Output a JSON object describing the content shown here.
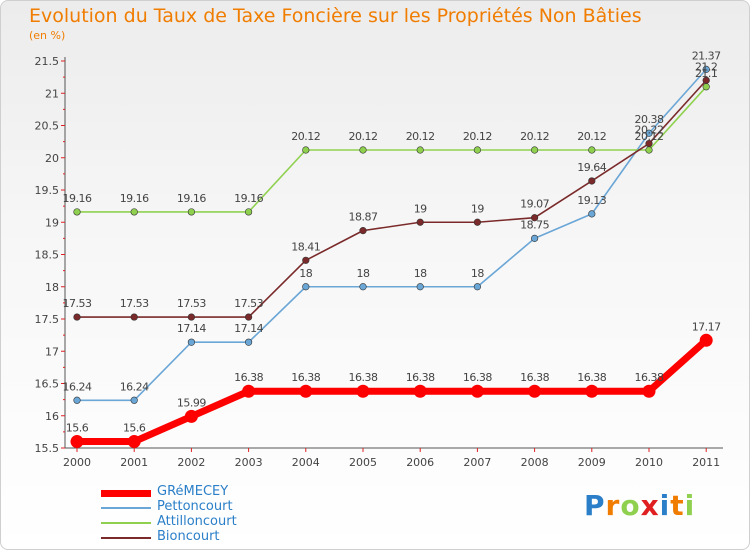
{
  "chart_data": {
    "type": "line",
    "title": "Evolution du Taux de Taxe Foncière sur les Propriétés Non Bâties",
    "subtitle": "(en %)",
    "x": [
      "2000",
      "2001",
      "2002",
      "2003",
      "2004",
      "2005",
      "2006",
      "2007",
      "2008",
      "2009",
      "2010",
      "2011"
    ],
    "ylim": [
      15.5,
      21.5
    ],
    "yticks": [
      "15.5",
      "16",
      "16.5",
      "17",
      "17.5",
      "18",
      "18.5",
      "19",
      "19.5",
      "20",
      "20.5",
      "21",
      "21.5"
    ],
    "series": [
      {
        "name": "GRéMECEY",
        "color": "#ff0000",
        "values": [
          15.6,
          15.6,
          15.99,
          16.38,
          16.38,
          16.38,
          16.38,
          16.38,
          16.38,
          16.38,
          16.38,
          17.17
        ],
        "labels": [
          "15.6",
          "15.6",
          "15.99",
          "16.38",
          "16.38",
          "16.38",
          "16.38",
          "16.38",
          "16.38",
          "16.38",
          "16.38",
          "17.17"
        ]
      },
      {
        "name": "Pettoncourt",
        "color": "#6aa6d6",
        "values": [
          16.24,
          16.24,
          17.14,
          17.14,
          18,
          18,
          18,
          18,
          18.75,
          19.13,
          20.38,
          21.37
        ],
        "labels": [
          "16.24",
          "16.24",
          "17.14",
          "17.14",
          "18",
          "18",
          "18",
          "18",
          "18.75",
          "19.13",
          "20.38",
          "21.37"
        ]
      },
      {
        "name": "Attilloncourt",
        "color": "#8fd14f",
        "values": [
          19.16,
          19.16,
          19.16,
          19.16,
          20.12,
          20.12,
          20.12,
          20.12,
          20.12,
          20.12,
          20.12,
          21.1
        ],
        "labels": [
          "19.16",
          "19.16",
          "19.16",
          "19.16",
          "20.12",
          "20.12",
          "20.12",
          "20.12",
          "20.12",
          "20.12",
          "20.12",
          "21.1"
        ]
      },
      {
        "name": "Bioncourt",
        "color": "#7a2a2a",
        "values": [
          17.53,
          17.53,
          17.53,
          17.53,
          18.41,
          18.87,
          19,
          19,
          19.07,
          19.64,
          20.22,
          21.2
        ],
        "labels": [
          "17.53",
          "17.53",
          "17.53",
          "17.53",
          "18.41",
          "18.87",
          "19",
          "19",
          "19.07",
          "19.64",
          "20.22",
          "21.2"
        ]
      }
    ],
    "legend_position": "bottom-left",
    "grid": false
  },
  "logo": {
    "letters": [
      "P",
      "r",
      "o",
      "x",
      "i",
      "t",
      "i"
    ],
    "colors": [
      "#2a7fc8",
      "#f07d00",
      "#8fd14f",
      "#e02020",
      "#2a7fc8",
      "#f07d00",
      "#8fd14f"
    ]
  }
}
